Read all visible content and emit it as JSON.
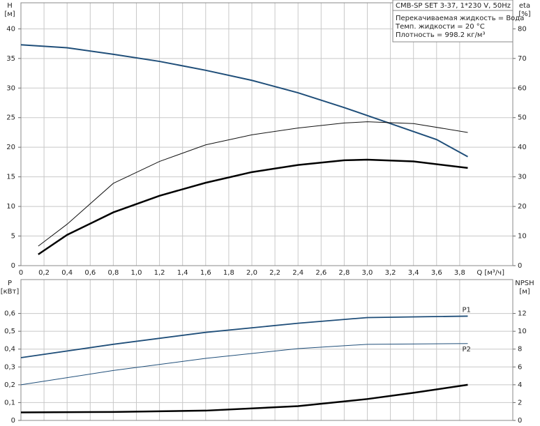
{
  "chart_data": [
    {
      "type": "line",
      "ylabel": "H",
      "yunit": "[м]",
      "y2label": "eta",
      "y2unit": "[%]",
      "xlabel": "Q [м³/ч]",
      "info": {
        "header": "CMB-SP SET 3-37, 1*230 V, 50Hz",
        "lines": [
          "Перекачиваемая жидкость = Вода",
          "Темп. жидкости = 20 °C",
          "Плотность = 998.2 кг/м³"
        ]
      },
      "xlim": [
        0,
        4.26
      ],
      "ylim": [
        0,
        44.4
      ],
      "y2lim": [
        0,
        88.8
      ],
      "grid": true,
      "xticks": [
        0,
        {
          "value": 0.2,
          "label": "0,2"
        },
        {
          "value": 0.4,
          "label": "0,4"
        },
        {
          "value": 0.6,
          "label": "0,6"
        },
        {
          "value": 0.8,
          "label": "0,8"
        },
        {
          "value": 1.0,
          "label": "1,0"
        },
        {
          "value": 1.2,
          "label": "1,2"
        },
        {
          "value": 1.4,
          "label": "1,4"
        },
        {
          "value": 1.6,
          "label": "1,6"
        },
        {
          "value": 1.8,
          "label": "1,8"
        },
        {
          "value": 2.0,
          "label": "2,0"
        },
        {
          "value": 2.2,
          "label": "2,2"
        },
        {
          "value": 2.4,
          "label": "2,4"
        },
        {
          "value": 2.6,
          "label": "2,6"
        },
        {
          "value": 2.8,
          "label": "2,8"
        },
        {
          "value": 3.0,
          "label": "3,0"
        },
        {
          "value": 3.2,
          "label": "3,2"
        },
        {
          "value": 3.4,
          "label": "3,4"
        },
        {
          "value": 3.6,
          "label": "3,6"
        },
        {
          "value": 3.8,
          "label": "3,8"
        }
      ],
      "yticks": [
        0,
        5,
        10,
        15,
        20,
        25,
        30,
        35,
        40
      ],
      "y2ticks": [
        0,
        10,
        20,
        30,
        40,
        50,
        60,
        70,
        80
      ],
      "series": [
        {
          "color": "#1f4e79",
          "linewidth": 2,
          "x": [
            0,
            0.4,
            0.8,
            1.2,
            1.6,
            2.0,
            2.4,
            2.8,
            3.2,
            3.6,
            3.87
          ],
          "values": [
            37.3,
            36.8,
            35.7,
            34.5,
            33.0,
            31.3,
            29.2,
            26.7,
            24.0,
            21.3,
            18.4
          ]
        },
        {
          "color": "#111",
          "linewidth": 1,
          "axis": "y2",
          "x": [
            0.15,
            0.4,
            0.8,
            1.2,
            1.6,
            2.0,
            2.4,
            2.8,
            3.0,
            3.4,
            3.87
          ],
          "values": [
            6.6,
            14,
            27.8,
            35.2,
            40.8,
            44.2,
            46.5,
            48.2,
            48.6,
            48,
            45
          ]
        },
        {
          "color": "#000",
          "linewidth": 2.5,
          "axis": "y2",
          "x": [
            0.15,
            0.4,
            0.8,
            1.2,
            1.6,
            2.0,
            2.4,
            2.8,
            3.0,
            3.4,
            3.87
          ],
          "values": [
            3.8,
            10.4,
            18,
            23.6,
            28,
            31.6,
            34,
            35.6,
            35.8,
            35.2,
            33
          ]
        }
      ]
    },
    {
      "type": "line",
      "ylabel": "P",
      "yunit": "[кВт]",
      "y2label": "NPSH",
      "y2unit": "[м]",
      "xlim": [
        0,
        4.26
      ],
      "ylim": [
        0,
        0.79
      ],
      "y2lim": [
        0,
        15.8
      ],
      "grid": true,
      "xgrid": [
        0,
        0.2,
        0.4,
        0.6,
        0.8,
        1.0,
        1.2,
        1.4,
        1.6,
        1.8,
        2.0,
        2.2,
        2.4,
        2.6,
        2.8,
        3.0,
        3.2,
        3.4,
        3.6,
        3.8
      ],
      "yticks": [
        0,
        {
          "value": 0.1,
          "label": "0,1"
        },
        {
          "value": 0.2,
          "label": "0,2"
        },
        {
          "value": 0.3,
          "label": "0,3"
        },
        {
          "value": 0.4,
          "label": "0,4"
        },
        {
          "value": 0.5,
          "label": "0,5"
        },
        {
          "value": 0.6,
          "label": "0,6"
        }
      ],
      "y2ticks": [
        0,
        2,
        4,
        6,
        8,
        10,
        12
      ],
      "series": [
        {
          "name": "P1",
          "color": "#1f4e79",
          "linewidth": 1.8,
          "x": [
            0,
            0.8,
            1.6,
            2.4,
            3.0,
            3.87
          ],
          "values": [
            0.352,
            0.427,
            0.494,
            0.545,
            0.577,
            0.585
          ]
        },
        {
          "name": "P2",
          "color": "#1f4e79",
          "linewidth": 1,
          "x": [
            0,
            0.8,
            1.6,
            2.4,
            3.0,
            3.87
          ],
          "values": [
            0.2,
            0.28,
            0.348,
            0.403,
            0.427,
            0.431
          ]
        },
        {
          "color": "#000",
          "linewidth": 2.5,
          "axis": "y2",
          "x": [
            0,
            0.8,
            1.6,
            2.4,
            3.0,
            3.4,
            3.87
          ],
          "values": [
            0.9,
            0.95,
            1.1,
            1.6,
            2.4,
            3.1,
            4.0
          ]
        }
      ]
    }
  ]
}
